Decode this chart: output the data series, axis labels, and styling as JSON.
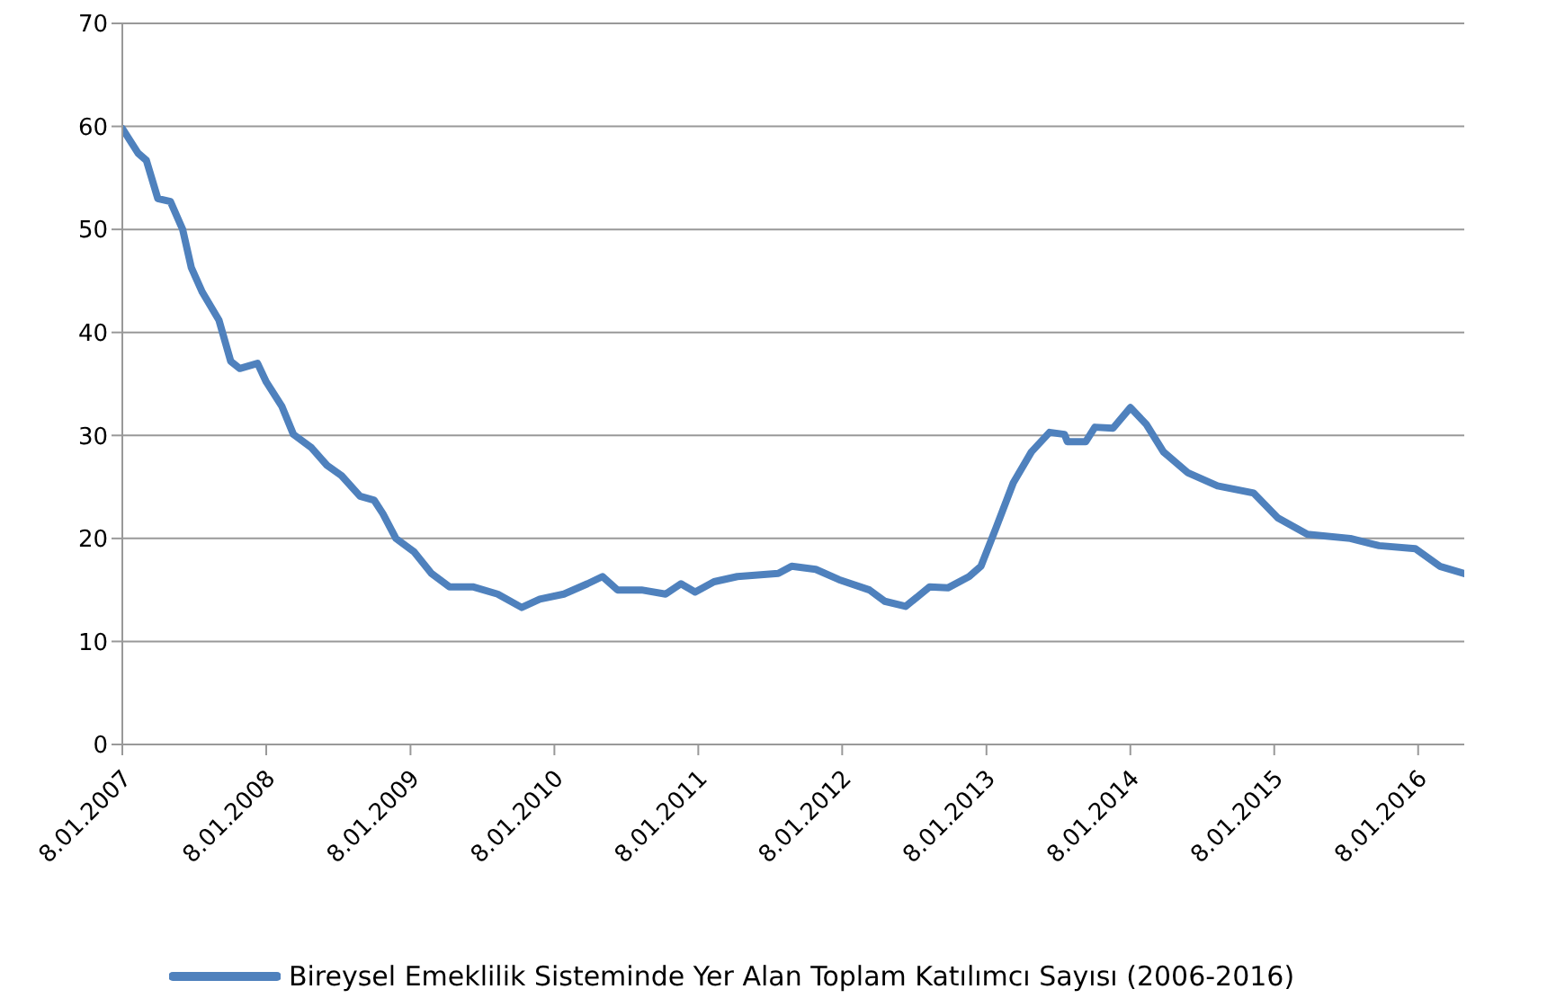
{
  "chart_data": {
    "type": "line",
    "x": [
      "2007-01-08",
      "2007-02-17",
      "2007-03-10",
      "2007-04-08",
      "2007-05-10",
      "2007-06-10",
      "2007-07-02",
      "2007-07-30",
      "2007-09-10",
      "2007-10-10",
      "2007-11-02",
      "2007-12-17",
      "2008-01-08",
      "2008-02-17",
      "2008-03-17",
      "2008-05-02",
      "2008-06-10",
      "2008-07-17",
      "2008-09-02",
      "2008-10-08",
      "2008-10-30",
      "2008-12-02",
      "2009-01-17",
      "2009-03-02",
      "2009-04-17",
      "2009-06-15",
      "2009-08-17",
      "2009-10-17",
      "2009-12-02",
      "2010-02-01",
      "2010-04-02",
      "2010-05-10",
      "2010-06-17",
      "2010-08-17",
      "2010-10-17",
      "2010-11-25",
      "2010-12-31",
      "2011-02-17",
      "2011-04-17",
      "2011-07-30",
      "2011-09-02",
      "2011-11-02",
      "2011-12-31",
      "2012-03-17",
      "2012-04-25",
      "2012-06-17",
      "2012-08-17",
      "2012-10-02",
      "2012-11-25",
      "2012-12-25",
      "2013-02-01",
      "2013-03-17",
      "2013-05-02",
      "2013-06-17",
      "2013-07-25",
      "2013-08-01",
      "2013-09-17",
      "2013-10-10",
      "2013-11-25",
      "2014-01-08",
      "2014-02-17",
      "2014-04-02",
      "2014-06-02",
      "2014-08-17",
      "2014-11-17",
      "2015-01-17",
      "2015-04-02",
      "2015-07-20",
      "2015-10-01",
      "2016-01-01",
      "2016-03-03",
      "2016-05-04"
    ],
    "series": [
      {
        "name": "Bireysel Emeklilik Sisteminde Yer Alan Toplam Katılımcı Sayısı (2006-2016)",
        "color": "#4f81bd",
        "values": [
          59.8,
          57.4,
          56.7,
          53.0,
          52.7,
          50.0,
          46.3,
          43.9,
          41.2,
          37.2,
          36.5,
          37.0,
          35.2,
          32.8,
          30.1,
          28.8,
          27.1,
          26.1,
          24.1,
          23.7,
          22.4,
          20.0,
          18.7,
          16.6,
          15.3,
          15.3,
          14.6,
          13.3,
          14.1,
          14.6,
          15.6,
          16.3,
          15.0,
          15.0,
          14.6,
          15.6,
          14.8,
          15.8,
          16.3,
          16.6,
          17.3,
          17.0,
          16.0,
          15.0,
          13.9,
          13.4,
          15.3,
          15.2,
          16.3,
          17.3,
          21.0,
          25.4,
          28.4,
          30.3,
          30.1,
          29.4,
          29.4,
          30.8,
          30.7,
          32.7,
          31.1,
          28.4,
          26.4,
          25.1,
          24.4,
          22.0,
          20.4,
          20.0,
          19.3,
          19.0,
          17.3,
          16.6
        ]
      }
    ],
    "xlim": [
      "2007-01-08",
      "2016-05-04"
    ],
    "xticks": [
      {
        "value": "2007-01-08",
        "label": "8.01.2007"
      },
      {
        "value": "2008-01-08",
        "label": "8.01.2008"
      },
      {
        "value": "2009-01-08",
        "label": "8.01.2009"
      },
      {
        "value": "2010-01-08",
        "label": "8.01.2010"
      },
      {
        "value": "2011-01-08",
        "label": "8.01.2011"
      },
      {
        "value": "2012-01-08",
        "label": "8.01.2012"
      },
      {
        "value": "2013-01-08",
        "label": "8.01.2013"
      },
      {
        "value": "2014-01-08",
        "label": "8.01.2014"
      },
      {
        "value": "2015-01-08",
        "label": "8.01.2015"
      },
      {
        "value": "2016-01-08",
        "label": "8.01.2016"
      }
    ],
    "ylim": [
      0,
      70
    ],
    "yticks": [
      0,
      10,
      20,
      30,
      40,
      50,
      60,
      70
    ],
    "grid": "y",
    "legend": "bottom",
    "marker": "none",
    "line_style": "solid"
  }
}
